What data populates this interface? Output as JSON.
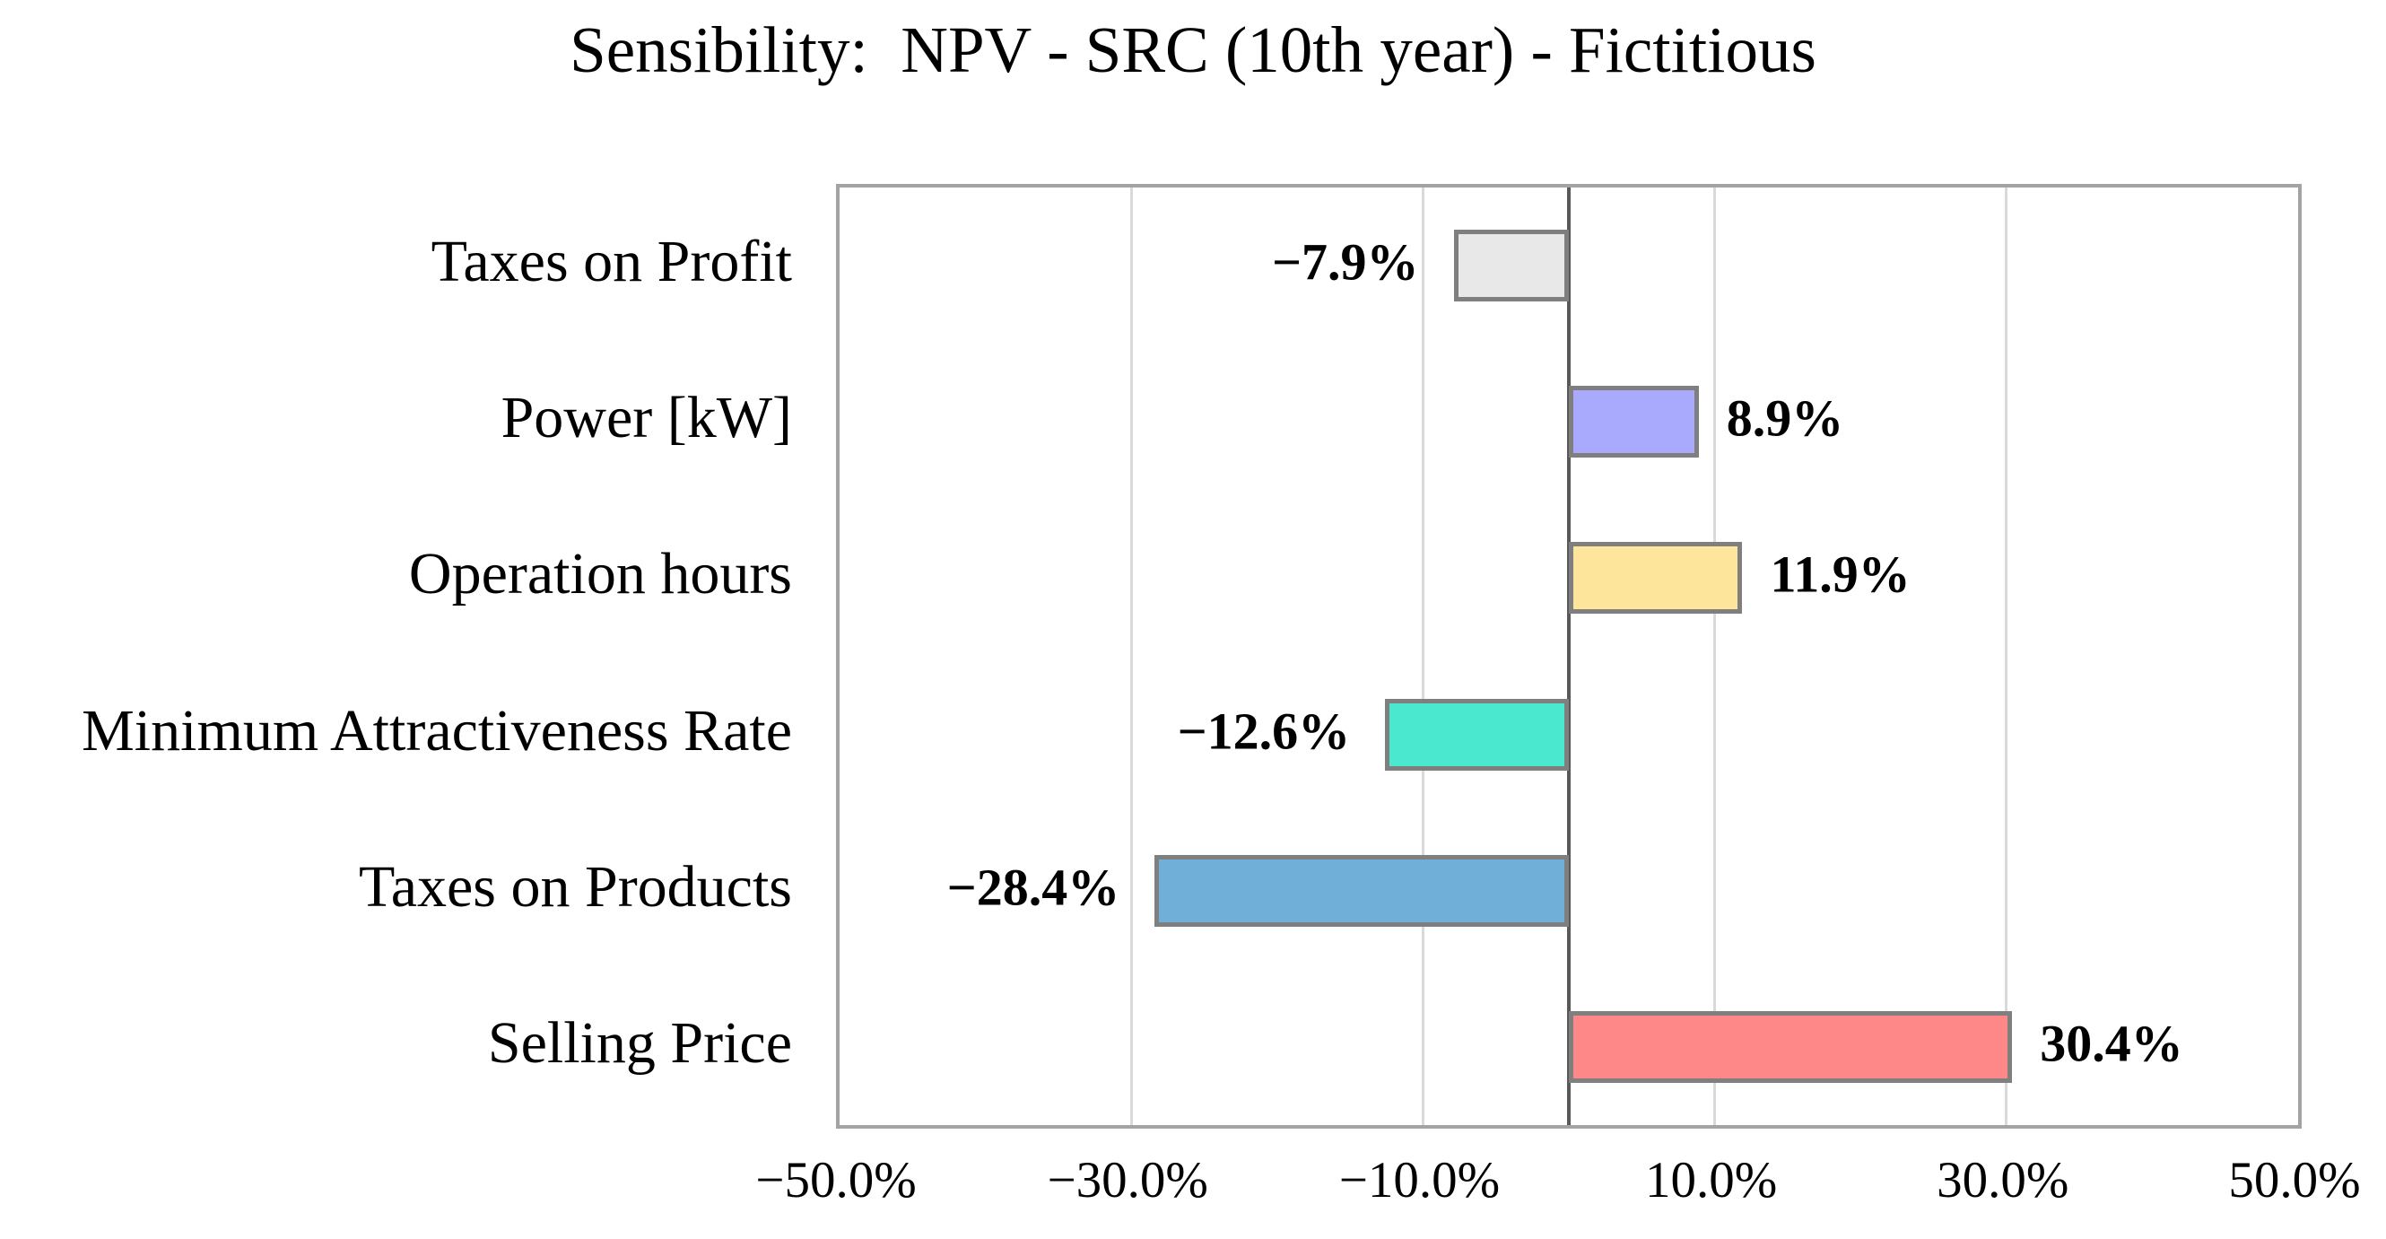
{
  "title": "Sensibility:  NPV - SRC (10th year) - Fictitious",
  "chart_data": {
    "type": "bar",
    "orientation": "horizontal",
    "title": "Sensibility:  NPV - SRC (10th year) - Fictitious",
    "categories": [
      "Taxes on Profit",
      "Power [kW]",
      "Operation hours",
      "Minimum Attractiveness Rate",
      "Taxes on Products",
      "Selling Price"
    ],
    "values": [
      -7.9,
      8.9,
      11.9,
      -12.6,
      -28.4,
      30.4
    ],
    "value_labels": [
      "−7.9%",
      "8.9%",
      "11.9%",
      "−12.6%",
      "−28.4%",
      "30.4%"
    ],
    "bar_colors": [
      "#E8E8E8",
      "#A9A9FD",
      "#FEE59C",
      "#49E8CF",
      "#6FAFD8",
      "#FE8787"
    ],
    "bar_border_color": "#7F7F7F",
    "xlim": [
      -50,
      50
    ],
    "x_ticks": [
      -50,
      -30,
      -10,
      10,
      30,
      50
    ],
    "x_tick_labels": [
      "−50.0%",
      "−30.0%",
      "−10.0%",
      "10.0%",
      "30.0%",
      "50.0%"
    ],
    "grid": true,
    "gridline_color": "#D9D9D9",
    "zero_line_color": "#595959",
    "plot_border_color": "#A3A3A3",
    "xlabel": "",
    "ylabel": "",
    "legend": "none"
  }
}
